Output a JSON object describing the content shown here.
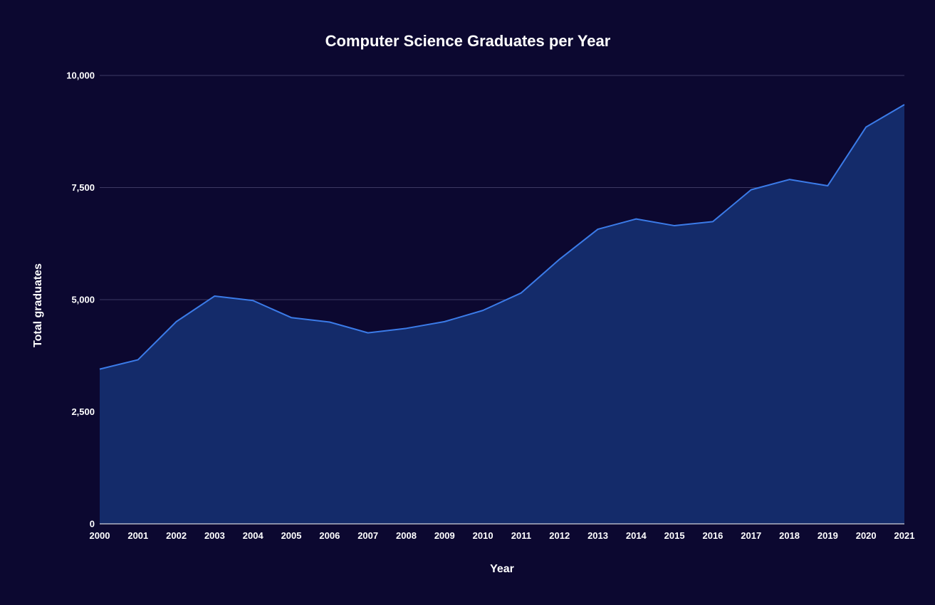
{
  "chart_data": {
    "type": "area",
    "title": "Computer Science Graduates per Year",
    "xlabel": "Year",
    "ylabel": "Total graduates",
    "x": [
      "2000",
      "2001",
      "2002",
      "2003",
      "2004",
      "2005",
      "2006",
      "2007",
      "2008",
      "2009",
      "2010",
      "2011",
      "2012",
      "2013",
      "2014",
      "2015",
      "2016",
      "2017",
      "2018",
      "2019",
      "2020",
      "2021"
    ],
    "series": [
      {
        "values": [
          3450,
          3660,
          4510,
          5080,
          4980,
          4600,
          4500,
          4260,
          4360,
          4510,
          4760,
          5150,
          5900,
          6570,
          6800,
          6650,
          6740,
          7450,
          7680,
          7540,
          8850,
          9350
        ]
      }
    ],
    "ylim": [
      0,
      10000
    ],
    "yticks": [
      0,
      2500,
      5000,
      7500,
      10000
    ],
    "ytick_labels": [
      "0",
      "2,500",
      "5,000",
      "7,500",
      "10,000"
    ],
    "grid": true,
    "legend": "none",
    "colors": {
      "background": "#0c0830",
      "line": "#3b7be8",
      "fill": "#142b6a",
      "grid": "#3d3a63",
      "text": "#ffffff"
    }
  }
}
